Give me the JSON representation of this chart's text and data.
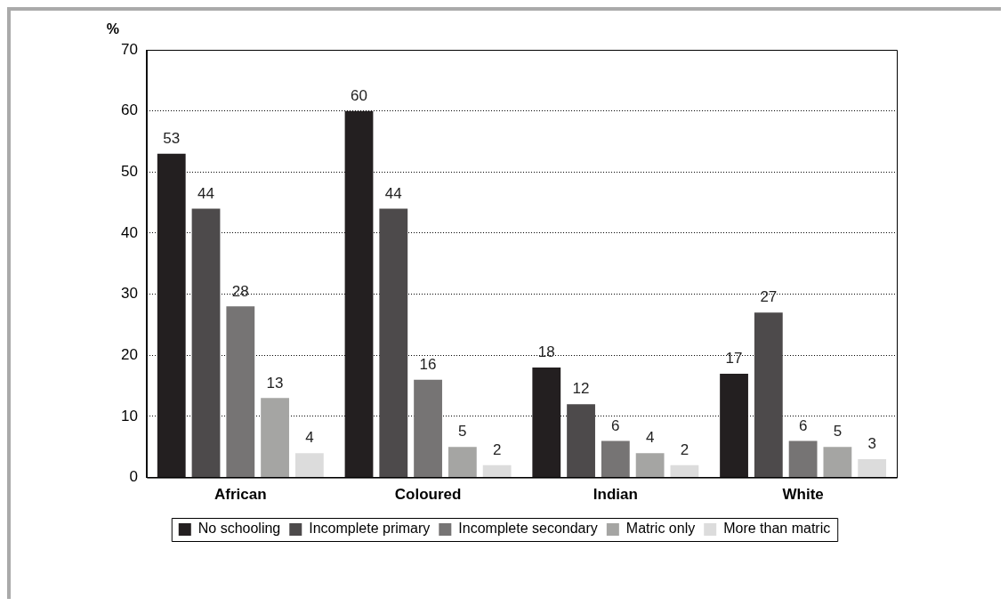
{
  "chart_data": {
    "type": "bar",
    "ylabel": "%",
    "categories": [
      "African",
      "Coloured",
      "Indian",
      "White"
    ],
    "series": [
      {
        "name": "No schooling",
        "color": "#231f20",
        "values": [
          53,
          60,
          18,
          17
        ]
      },
      {
        "name": "Incomplete primary",
        "color": "#4d4a4b",
        "values": [
          44,
          44,
          12,
          27
        ]
      },
      {
        "name": "Incomplete secondary",
        "color": "#767474",
        "values": [
          28,
          16,
          6,
          6
        ]
      },
      {
        "name": "Matric only",
        "color": "#a5a5a3",
        "values": [
          13,
          5,
          4,
          5
        ]
      },
      {
        "name": "More than matric",
        "color": "#dcdcdc",
        "values": [
          4,
          2,
          2,
          3
        ]
      }
    ],
    "ylim": [
      0,
      70
    ],
    "yticks": [
      0,
      10,
      20,
      30,
      40,
      50,
      60,
      70
    ],
    "grid": "y",
    "legend": "bottom",
    "data_labels": true
  }
}
